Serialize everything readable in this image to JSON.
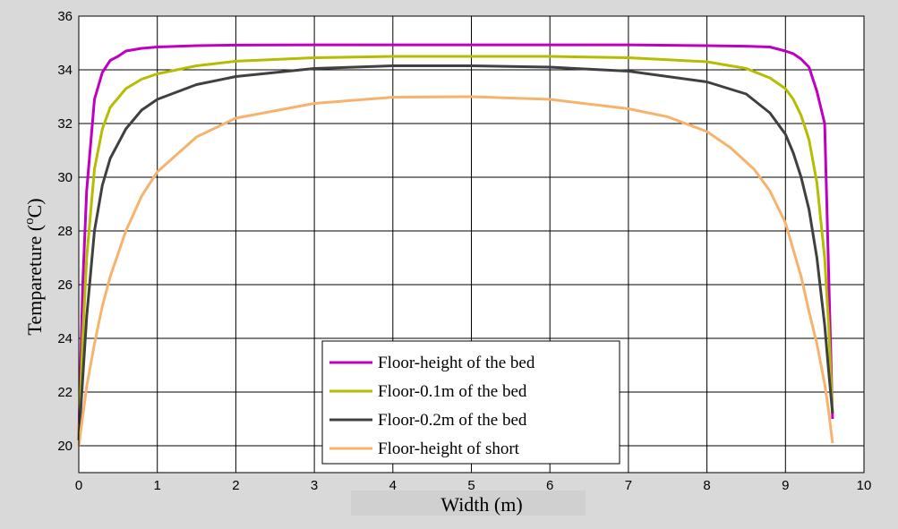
{
  "chart_data": {
    "type": "line",
    "xlabel": "Width (m)",
    "ylabel_main": "Tempareture (",
    "ylabel_sup": "o",
    "ylabel_tail": "C)",
    "xlim": [
      0,
      10
    ],
    "ylim": [
      19,
      36
    ],
    "xticks": [
      0,
      1,
      2,
      3,
      4,
      5,
      6,
      7,
      8,
      9,
      10
    ],
    "yticks": [
      20,
      22,
      24,
      26,
      28,
      30,
      32,
      34,
      36
    ],
    "grid": true,
    "legend_position": "bottom-center",
    "series": [
      {
        "name": "Floor-height of the bed",
        "color": "#c000c0",
        "x": [
          0.0,
          0.05,
          0.1,
          0.2,
          0.3,
          0.4,
          0.5,
          0.6,
          0.8,
          1.0,
          1.5,
          2.0,
          3.0,
          4.0,
          5.0,
          6.0,
          7.0,
          8.0,
          8.5,
          8.8,
          9.0,
          9.1,
          9.2,
          9.3,
          9.4,
          9.5,
          9.55,
          9.6
        ],
        "y": [
          20.3,
          26.0,
          29.5,
          32.9,
          33.9,
          34.35,
          34.5,
          34.7,
          34.8,
          34.85,
          34.9,
          34.92,
          34.93,
          34.93,
          34.93,
          34.93,
          34.93,
          34.9,
          34.88,
          34.85,
          34.7,
          34.6,
          34.4,
          34.1,
          33.2,
          32.0,
          26.5,
          21.0
        ]
      },
      {
        "name": "Floor-0.1m of the bed",
        "color": "#b5bd00",
        "x": [
          0.0,
          0.05,
          0.1,
          0.2,
          0.3,
          0.4,
          0.6,
          0.8,
          1.0,
          1.5,
          2.0,
          3.0,
          4.0,
          5.0,
          6.0,
          7.0,
          8.0,
          8.5,
          8.8,
          9.0,
          9.1,
          9.2,
          9.3,
          9.4,
          9.5,
          9.55,
          9.6
        ],
        "y": [
          20.3,
          24.0,
          27.0,
          30.3,
          31.8,
          32.6,
          33.3,
          33.65,
          33.85,
          34.15,
          34.32,
          34.45,
          34.5,
          34.5,
          34.5,
          34.45,
          34.3,
          34.05,
          33.7,
          33.3,
          32.9,
          32.3,
          31.4,
          29.8,
          27.0,
          24.5,
          21.2
        ]
      },
      {
        "name": "Floor-0.2m of the bed",
        "color": "#404040",
        "x": [
          0.0,
          0.05,
          0.1,
          0.2,
          0.3,
          0.4,
          0.6,
          0.8,
          1.0,
          1.5,
          2.0,
          3.0,
          4.0,
          5.0,
          6.0,
          7.0,
          8.0,
          8.5,
          8.8,
          9.0,
          9.1,
          9.2,
          9.3,
          9.4,
          9.5,
          9.55,
          9.6
        ],
        "y": [
          20.2,
          22.5,
          24.8,
          28.0,
          29.7,
          30.7,
          31.8,
          32.5,
          32.9,
          33.45,
          33.75,
          34.05,
          34.15,
          34.15,
          34.1,
          33.95,
          33.55,
          33.1,
          32.4,
          31.6,
          30.9,
          30.0,
          28.8,
          27.0,
          24.5,
          22.8,
          21.2
        ]
      },
      {
        "name": "Floor-height of short",
        "color": "#f6b36d",
        "x": [
          0.0,
          0.1,
          0.2,
          0.3,
          0.4,
          0.6,
          0.8,
          1.0,
          1.5,
          2.0,
          3.0,
          4.0,
          5.0,
          6.0,
          7.0,
          7.5,
          8.0,
          8.3,
          8.6,
          8.8,
          9.0,
          9.2,
          9.3,
          9.4,
          9.5,
          9.55,
          9.6
        ],
        "y": [
          20.0,
          22.2,
          23.8,
          25.2,
          26.3,
          28.0,
          29.3,
          30.2,
          31.5,
          32.2,
          32.75,
          32.98,
          33.0,
          32.9,
          32.55,
          32.25,
          31.7,
          31.1,
          30.3,
          29.5,
          28.3,
          26.3,
          25.0,
          23.8,
          22.3,
          21.3,
          20.1
        ]
      }
    ]
  }
}
